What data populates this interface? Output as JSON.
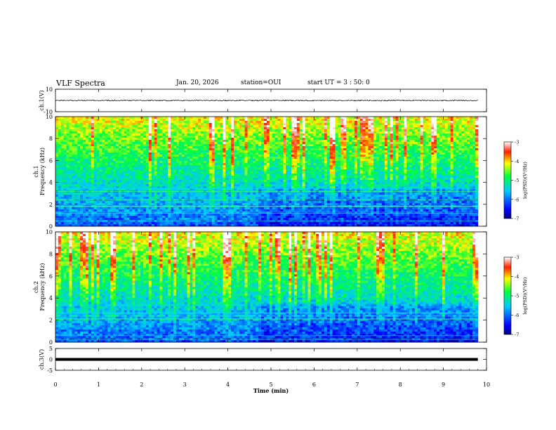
{
  "header": {
    "title": "VLF Spectra",
    "date": "Jan. 20, 2026",
    "station": "station=OUI",
    "start_ut": "start UT =  3 : 50: 0"
  },
  "chart_data": {
    "type": "heatmap",
    "x_axis": {
      "label": "Time (min)",
      "range": [
        0,
        10
      ],
      "ticks": [
        "0",
        "1",
        "2",
        "3",
        "4",
        "5",
        "6",
        "7",
        "8",
        "9",
        "10"
      ]
    },
    "panels": [
      {
        "name": "ch1-waveform",
        "type": "line",
        "ylabel": "ch.1(V)",
        "ylim": [
          -10,
          10
        ],
        "tick_labels": [
          "10",
          "-10"
        ],
        "baseline_value": 0,
        "noise_amplitude": 0.5
      },
      {
        "name": "ch1-spectrogram",
        "type": "heatmap",
        "ylabel_line1": "ch.1",
        "ylabel_line2": "Frequency (kHz)",
        "ylim": [
          0,
          10
        ],
        "tick_labels": [
          "0",
          "2",
          "4",
          "6",
          "8",
          "10"
        ],
        "colorbar": {
          "label": "log(PSD)(V²/Hz)",
          "range": [
            -7,
            -3
          ],
          "tick_labels": [
            "-3",
            "-4",
            "-5",
            "-6",
            "-7"
          ]
        }
      },
      {
        "name": "ch2-spectrogram",
        "type": "heatmap",
        "ylabel_line1": "ch.2",
        "ylabel_line2": "Frequency (kHz)",
        "ylim": [
          0,
          10
        ],
        "tick_labels": [
          "0",
          "2",
          "4",
          "6",
          "8",
          "10"
        ],
        "colorbar": {
          "label": "log(PSD)(V²/Hz)",
          "range": [
            -7,
            -3
          ],
          "tick_labels": [
            "-3",
            "-4",
            "-5",
            "-6",
            "-7"
          ]
        }
      },
      {
        "name": "ch3-waveform",
        "type": "line",
        "ylabel": "ch.3(V)",
        "ylim": [
          -5,
          5
        ],
        "tick_labels": [
          "5",
          "0",
          "-5"
        ],
        "baseline_value": 0
      }
    ],
    "end_time_min": 9.8
  }
}
